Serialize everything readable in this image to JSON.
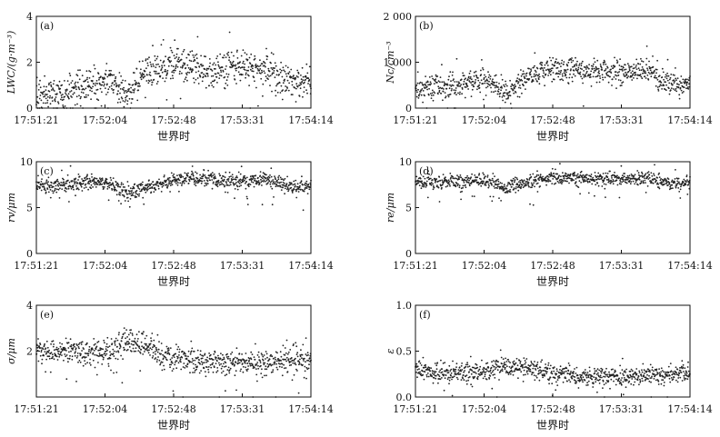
{
  "chart_data": [
    {
      "type": "scatter",
      "panel_label": "(a)",
      "ylabel": "LWC/(g·m⁻³)",
      "xlabel": "世界时",
      "x_ticks": [
        "17:51:21",
        "17:52:04",
        "17:52:48",
        "17:53:31",
        "17:54:14"
      ],
      "y_ticks": [
        "0",
        "2",
        "4"
      ],
      "ylim": [
        0,
        4
      ],
      "segments": [
        [
          0,
          0.5
        ],
        [
          40,
          0.8
        ],
        [
          85,
          1.2
        ],
        [
          105,
          0.6
        ],
        [
          130,
          1.5
        ],
        [
          160,
          2.0
        ],
        [
          200,
          1.6
        ],
        [
          240,
          1.8
        ],
        [
          270,
          1.6
        ],
        [
          300,
          1.0
        ],
        [
          320,
          1.3
        ]
      ],
      "spread": 0.35
    },
    {
      "type": "scatter",
      "panel_label": "(b)",
      "ylabel": "Nc/cm⁻³",
      "xlabel": "世界时",
      "x_ticks": [
        "17:51:21",
        "17:52:04",
        "17:52:48",
        "17:53:31",
        "17:54:14"
      ],
      "y_ticks": [
        "0",
        "1 000",
        "2 000"
      ],
      "ylim": [
        0,
        2000
      ],
      "segments": [
        [
          0,
          420
        ],
        [
          40,
          480
        ],
        [
          85,
          650
        ],
        [
          105,
          280
        ],
        [
          130,
          700
        ],
        [
          160,
          850
        ],
        [
          200,
          800
        ],
        [
          240,
          780
        ],
        [
          270,
          800
        ],
        [
          300,
          500
        ],
        [
          320,
          550
        ]
      ],
      "spread": 130
    },
    {
      "type": "scatter",
      "panel_label": "(c)",
      "ylabel": "rv/μm",
      "xlabel": "世界时",
      "x_ticks": [
        "17:51:21",
        "17:52:04",
        "17:52:48",
        "17:53:31",
        "17:54:14"
      ],
      "y_ticks": [
        "0",
        "5",
        "10"
      ],
      "ylim": [
        0,
        10
      ],
      "segments": [
        [
          0,
          7.3
        ],
        [
          40,
          7.6
        ],
        [
          80,
          7.8
        ],
        [
          105,
          6.7
        ],
        [
          130,
          7.2
        ],
        [
          160,
          8.0
        ],
        [
          200,
          8.1
        ],
        [
          240,
          7.9
        ],
        [
          270,
          8.0
        ],
        [
          300,
          7.2
        ],
        [
          320,
          7.5
        ]
      ],
      "spread": 0.4
    },
    {
      "type": "scatter",
      "panel_label": "(d)",
      "ylabel": "re/μm",
      "xlabel": "世界时",
      "x_ticks": [
        "17:51:21",
        "17:52:04",
        "17:52:48",
        "17:53:31",
        "17:54:14"
      ],
      "y_ticks": [
        "0",
        "5",
        "10"
      ],
      "ylim": [
        0,
        10
      ],
      "segments": [
        [
          0,
          7.7
        ],
        [
          40,
          7.8
        ],
        [
          80,
          8.0
        ],
        [
          105,
          7.2
        ],
        [
          130,
          7.8
        ],
        [
          160,
          8.3
        ],
        [
          200,
          8.2
        ],
        [
          240,
          8.1
        ],
        [
          270,
          8.2
        ],
        [
          300,
          7.6
        ],
        [
          320,
          7.8
        ]
      ],
      "spread": 0.35
    },
    {
      "type": "scatter",
      "panel_label": "(e)",
      "ylabel": "σ/μm",
      "xlabel": "世界时",
      "x_ticks": [
        "17:51:21",
        "17:52:04",
        "17:52:48",
        "17:53:31",
        "17:54:14"
      ],
      "y_ticks": [
        "2",
        "4"
      ],
      "ylim": [
        0,
        4
      ],
      "segments": [
        [
          0,
          2.0
        ],
        [
          40,
          2.0
        ],
        [
          85,
          1.9
        ],
        [
          105,
          2.4
        ],
        [
          130,
          2.3
        ],
        [
          145,
          1.8
        ],
        [
          200,
          1.5
        ],
        [
          260,
          1.5
        ],
        [
          320,
          1.6
        ]
      ],
      "spread": 0.25
    },
    {
      "type": "scatter",
      "panel_label": "(f)",
      "ylabel": "ε",
      "xlabel": "世界时",
      "x_ticks": [
        "17:51:21",
        "17:52:04",
        "17:52:48",
        "17:53:31",
        "17:54:14"
      ],
      "y_ticks": [
        "0.0",
        "0.5",
        "1.0"
      ],
      "ylim": [
        0,
        1
      ],
      "segments": [
        [
          0,
          0.3
        ],
        [
          40,
          0.25
        ],
        [
          85,
          0.28
        ],
        [
          105,
          0.35
        ],
        [
          130,
          0.33
        ],
        [
          150,
          0.27
        ],
        [
          200,
          0.22
        ],
        [
          260,
          0.22
        ],
        [
          320,
          0.27
        ]
      ],
      "spread": 0.05
    }
  ]
}
